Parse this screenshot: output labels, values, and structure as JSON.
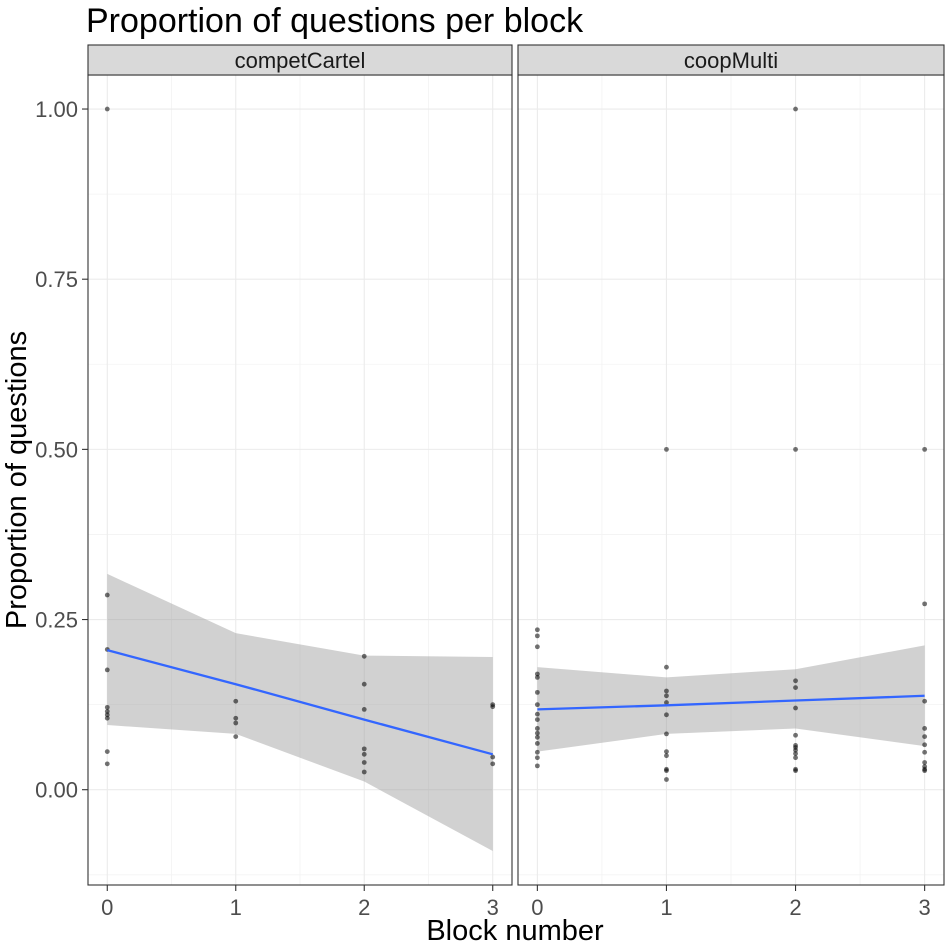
{
  "chart_data": {
    "type": "scatter",
    "title": "Proportion of questions per block",
    "xlabel": "Block number",
    "ylabel": "Proportion of questions",
    "xlim": [
      -0.15,
      3.15
    ],
    "ylim": [
      -0.14,
      1.05
    ],
    "x_ticks": [
      0,
      1,
      2,
      3
    ],
    "x_tick_labels": [
      "0",
      "1",
      "2",
      "3"
    ],
    "y_ticks": [
      0.0,
      0.25,
      0.5,
      0.75,
      1.0
    ],
    "y_tick_labels": [
      "0.00",
      "0.25",
      "0.50",
      "0.75",
      "1.00"
    ],
    "grid": true,
    "fit_color": "#3366ff",
    "panels": [
      {
        "label": "competCartel",
        "points": [
          [
            0,
            1.0
          ],
          [
            0,
            0.286
          ],
          [
            0,
            0.206
          ],
          [
            0,
            0.176
          ],
          [
            0,
            0.121
          ],
          [
            0,
            0.115
          ],
          [
            0,
            0.11
          ],
          [
            0,
            0.105
          ],
          [
            0,
            0.056
          ],
          [
            0,
            0.038
          ],
          [
            1,
            0.13
          ],
          [
            1,
            0.105
          ],
          [
            1,
            0.098
          ],
          [
            1,
            0.078
          ],
          [
            2,
            0.196
          ],
          [
            2,
            0.155
          ],
          [
            2,
            0.118
          ],
          [
            2,
            0.06
          ],
          [
            2,
            0.052
          ],
          [
            2,
            0.04
          ],
          [
            2,
            0.026
          ],
          [
            3,
            0.125
          ],
          [
            3,
            0.122
          ],
          [
            3,
            0.048
          ],
          [
            3,
            0.038
          ]
        ],
        "fit": {
          "x": [
            0,
            1,
            2,
            3
          ],
          "y": [
            0.205,
            0.155,
            0.103,
            0.052
          ],
          "lower": [
            0.095,
            0.082,
            0.012,
            -0.09
          ],
          "upper": [
            0.317,
            0.23,
            0.197,
            0.195
          ]
        }
      },
      {
        "label": "coopMulti",
        "points": [
          [
            0,
            0.235
          ],
          [
            0,
            0.226
          ],
          [
            0,
            0.21
          ],
          [
            0,
            0.17
          ],
          [
            0,
            0.165
          ],
          [
            0,
            0.143
          ],
          [
            0,
            0.125
          ],
          [
            0,
            0.111
          ],
          [
            0,
            0.103
          ],
          [
            0,
            0.09
          ],
          [
            0,
            0.083
          ],
          [
            0,
            0.077
          ],
          [
            0,
            0.068
          ],
          [
            0,
            0.055
          ],
          [
            0,
            0.047
          ],
          [
            0,
            0.035
          ],
          [
            1,
            0.5
          ],
          [
            1,
            0.18
          ],
          [
            1,
            0.145
          ],
          [
            1,
            0.138
          ],
          [
            1,
            0.128
          ],
          [
            1,
            0.11
          ],
          [
            1,
            0.082
          ],
          [
            1,
            0.056
          ],
          [
            1,
            0.05
          ],
          [
            1,
            0.03
          ],
          [
            1,
            0.028
          ],
          [
            1,
            0.015
          ],
          [
            2,
            1.0
          ],
          [
            2,
            0.5
          ],
          [
            2,
            0.16
          ],
          [
            2,
            0.15
          ],
          [
            2,
            0.12
          ],
          [
            2,
            0.08
          ],
          [
            2,
            0.065
          ],
          [
            2,
            0.062
          ],
          [
            2,
            0.058
          ],
          [
            2,
            0.053
          ],
          [
            2,
            0.047
          ],
          [
            2,
            0.03
          ],
          [
            2,
            0.028
          ],
          [
            3,
            0.5
          ],
          [
            3,
            0.273
          ],
          [
            3,
            0.13
          ],
          [
            3,
            0.09
          ],
          [
            3,
            0.078
          ],
          [
            3,
            0.066
          ],
          [
            3,
            0.055
          ],
          [
            3,
            0.04
          ],
          [
            3,
            0.034
          ],
          [
            3,
            0.03
          ],
          [
            3,
            0.028
          ]
        ],
        "fit": {
          "x": [
            0,
            1,
            2,
            3
          ],
          "y": [
            0.118,
            0.124,
            0.131,
            0.138
          ],
          "lower": [
            0.056,
            0.082,
            0.09,
            0.064
          ],
          "upper": [
            0.18,
            0.165,
            0.177,
            0.212
          ]
        }
      }
    ]
  }
}
